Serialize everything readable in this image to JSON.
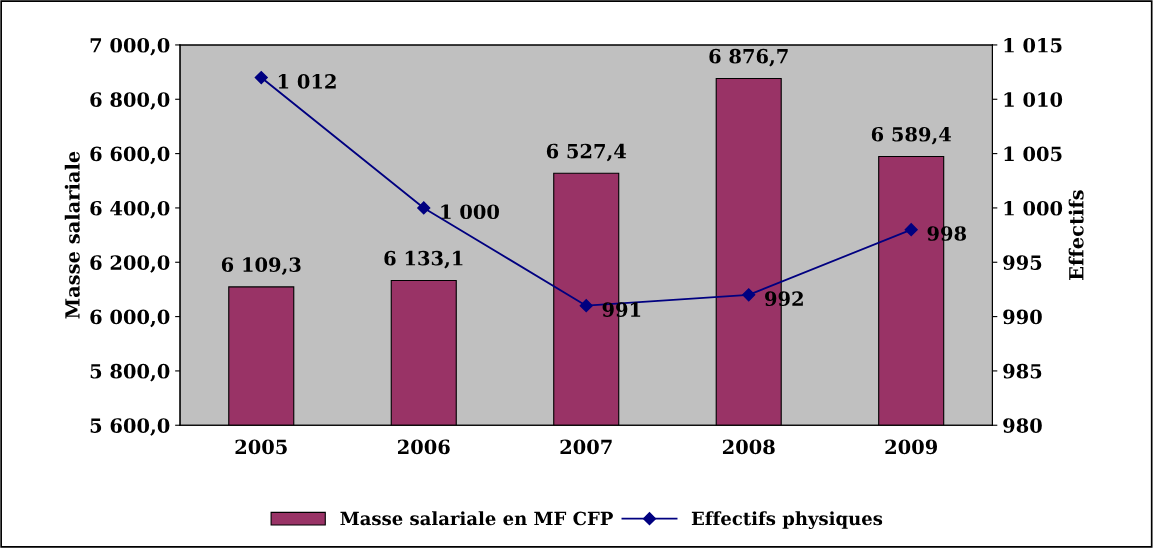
{
  "chart_data": {
    "type": "bar",
    "categories": [
      "2005",
      "2006",
      "2007",
      "2008",
      "2009"
    ],
    "ylabel": "Masse salariale",
    "y2label": "Effectifs",
    "series": [
      {
        "name": "Masse salariale en MF CFP",
        "color": "#993366",
        "values": [
          6109.3,
          6133.1,
          6527.4,
          6876.7,
          6589.4
        ],
        "value_labels": [
          "6 109,3",
          "6 133,1",
          "6 527,4",
          "6 876,7",
          "6 589,4"
        ]
      },
      {
        "name": "Effectifs physiques",
        "type": "line",
        "axis": "y2",
        "color": "#000080",
        "marker": "diamond",
        "values": [
          1012,
          1000,
          991,
          992,
          998
        ],
        "value_labels": [
          "1 012",
          "1 000",
          "991",
          "992",
          "998"
        ]
      }
    ],
    "ylim": [
      5600,
      7000
    ],
    "yticks": [
      {
        "value": 5600,
        "label": "5 600,0"
      },
      {
        "value": 5800,
        "label": "5 800,0"
      },
      {
        "value": 6000,
        "label": "6 000,0"
      },
      {
        "value": 6200,
        "label": "6 200,0"
      },
      {
        "value": 6400,
        "label": "6 400,0"
      },
      {
        "value": 6600,
        "label": "6 600,0"
      },
      {
        "value": 6800,
        "label": "6 800,0"
      },
      {
        "value": 7000,
        "label": "7 000,0"
      }
    ],
    "y2lim": [
      980,
      1015
    ],
    "y2ticks": [
      980,
      985,
      990,
      995,
      {
        "value": 1000,
        "label": "1 000"
      },
      {
        "value": 1005,
        "label": "1 005"
      },
      {
        "value": 1010,
        "label": "1 010"
      },
      {
        "value": 1015,
        "label": "1 015"
      }
    ],
    "grid": false,
    "legend": "bottom"
  }
}
